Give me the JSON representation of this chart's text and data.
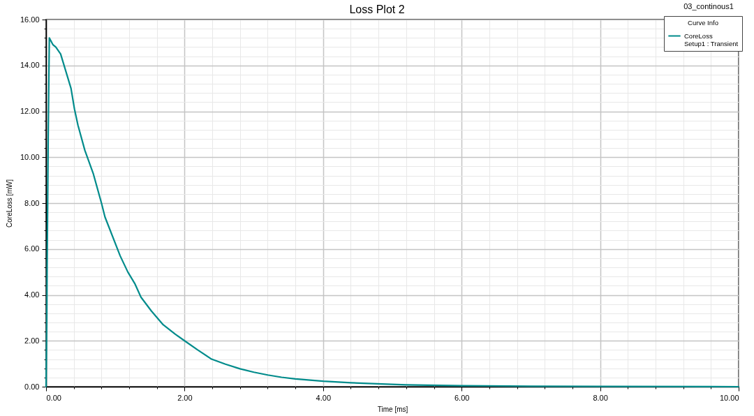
{
  "chart_data": {
    "type": "line",
    "title": "Loss Plot 2",
    "xlabel": "Time [ms]",
    "ylabel": "CoreLoss [mW]",
    "legend_title": "Curve Info",
    "annotations": [
      "03_continous1",
      "Setup1 : Transient"
    ],
    "series": [
      {
        "name": "CoreLoss",
        "color": "#008b8b",
        "x": [
          0,
          0.01,
          0.015,
          0.023,
          0.03,
          0.04,
          0.047,
          0.1,
          0.14,
          0.21,
          0.29,
          0.36,
          0.41,
          0.46,
          0.56,
          0.68,
          0.8,
          0.85,
          1.07,
          1.18,
          1.28,
          1.37,
          1.52,
          1.69,
          1.86,
          2.0,
          2.19,
          2.39,
          2.59,
          2.8,
          3.0,
          3.2,
          3.4,
          3.6,
          4.0,
          4.4,
          4.85,
          5.2,
          6.0,
          7.0,
          8.0,
          10.0
        ],
        "values": [
          0,
          2.7,
          5.3,
          8.0,
          10.7,
          13.4,
          15.2,
          14.9,
          14.8,
          14.5,
          13.7,
          13.0,
          12.1,
          11.4,
          10.3,
          9.3,
          8.0,
          7.4,
          5.7,
          5.0,
          4.5,
          3.9,
          3.3,
          2.7,
          2.3,
          2.0,
          1.6,
          1.2,
          0.98,
          0.78,
          0.63,
          0.51,
          0.41,
          0.34,
          0.24,
          0.17,
          0.12,
          0.08,
          0.04,
          0.02,
          0.01,
          0
        ]
      }
    ],
    "xlim": [
      0,
      10
    ],
    "ylim": [
      0,
      16
    ],
    "xticks": [
      {
        "value": 0,
        "label": "0.00"
      },
      {
        "value": 0.4,
        "label": null
      },
      {
        "value": 0.8,
        "label": null
      },
      {
        "value": 1.2,
        "label": null
      },
      {
        "value": 1.6,
        "label": null
      },
      {
        "value": 2,
        "label": "2.00"
      },
      {
        "value": 2.4,
        "label": null
      },
      {
        "value": 2.8,
        "label": null
      },
      {
        "value": 3.2,
        "label": null
      },
      {
        "value": 3.6,
        "label": null
      },
      {
        "value": 4,
        "label": "4.00"
      },
      {
        "value": 4.4,
        "label": null
      },
      {
        "value": 4.8,
        "label": null
      },
      {
        "value": 5.2,
        "label": null
      },
      {
        "value": 5.6,
        "label": null
      },
      {
        "value": 6,
        "label": "6.00"
      },
      {
        "value": 6.4,
        "label": null
      },
      {
        "value": 6.8,
        "label": null
      },
      {
        "value": 7.2,
        "label": null
      },
      {
        "value": 7.6,
        "label": null
      },
      {
        "value": 8,
        "label": "8.00"
      },
      {
        "value": 8.4,
        "label": null
      },
      {
        "value": 8.8,
        "label": null
      },
      {
        "value": 9.2,
        "label": null
      },
      {
        "value": 9.6,
        "label": null
      },
      {
        "value": 10,
        "label": "10.00"
      }
    ],
    "yticks": [
      {
        "value": 0,
        "label": "0.00"
      },
      {
        "value": 0.4,
        "label": null
      },
      {
        "value": 0.8,
        "label": null
      },
      {
        "value": 1.2,
        "label": null
      },
      {
        "value": 1.6,
        "label": null
      },
      {
        "value": 2,
        "label": "2.00"
      },
      {
        "value": 2.4,
        "label": null
      },
      {
        "value": 2.8,
        "label": null
      },
      {
        "value": 3.2,
        "label": null
      },
      {
        "value": 3.6,
        "label": null
      },
      {
        "value": 4,
        "label": "4.00"
      },
      {
        "value": 4.4,
        "label": null
      },
      {
        "value": 4.8,
        "label": null
      },
      {
        "value": 5.2,
        "label": null
      },
      {
        "value": 5.6,
        "label": null
      },
      {
        "value": 6,
        "label": "6.00"
      },
      {
        "value": 6.4,
        "label": null
      },
      {
        "value": 6.8,
        "label": null
      },
      {
        "value": 7.2,
        "label": null
      },
      {
        "value": 7.6,
        "label": null
      },
      {
        "value": 8,
        "label": "8.00"
      },
      {
        "value": 8.4,
        "label": null
      },
      {
        "value": 8.8,
        "label": null
      },
      {
        "value": 9.2,
        "label": null
      },
      {
        "value": 9.6,
        "label": null
      },
      {
        "value": 10,
        "label": "10.00"
      },
      {
        "value": 10.4,
        "label": null
      },
      {
        "value": 10.8,
        "label": null
      },
      {
        "value": 11.2,
        "label": null
      },
      {
        "value": 11.6,
        "label": null
      },
      {
        "value": 12,
        "label": "12.00"
      },
      {
        "value": 12.4,
        "label": null
      },
      {
        "value": 12.8,
        "label": null
      },
      {
        "value": 13.2,
        "label": null
      },
      {
        "value": 13.6,
        "label": null
      },
      {
        "value": 14,
        "label": "14.00"
      },
      {
        "value": 14.4,
        "label": null
      },
      {
        "value": 14.8,
        "label": null
      },
      {
        "value": 15.2,
        "label": null
      },
      {
        "value": 15.6,
        "label": null
      },
      {
        "value": 16,
        "label": "16.00"
      }
    ],
    "grid": true,
    "legend": "top right",
    "marker": "none",
    "line_style": "solid"
  }
}
